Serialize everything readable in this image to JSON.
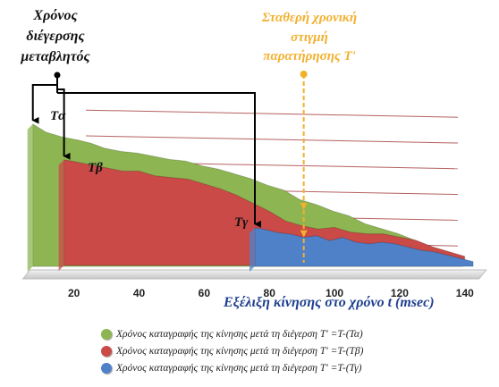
{
  "chart_data": {
    "type": "area",
    "ylabel_lines": [
      "Χρόνος",
      "διέγερσης",
      "μεταβλητός"
    ],
    "xlabel": "Εξέλιξη κίνησης στο χρόνο t (msec)",
    "x_ticks": [
      20,
      40,
      60,
      80,
      100,
      120,
      140
    ],
    "xlim": [
      5,
      145
    ],
    "ylim": [
      0,
      10
    ],
    "grid": true,
    "annotation_lines": [
      "Σταθερή χρονική",
      "στιγμή",
      "παρατήρησης Τ'"
    ],
    "annotation_x": 90,
    "series": [
      {
        "name": "Tα",
        "color": "#8db551",
        "x": [
          8,
          12,
          17,
          22,
          26,
          30,
          35,
          40,
          45,
          50,
          55,
          60,
          65,
          70,
          75,
          80,
          85,
          90,
          95,
          100,
          105,
          110,
          115,
          120,
          125,
          130,
          135,
          140
        ],
        "y": [
          9.0,
          8.5,
          8.2,
          8.0,
          7.8,
          7.5,
          7.3,
          7.2,
          7.0,
          6.8,
          6.7,
          6.4,
          6.2,
          5.9,
          5.6,
          5.2,
          4.9,
          4.3,
          4.0,
          3.6,
          3.3,
          2.8,
          2.5,
          2.2,
          1.8,
          1.4,
          0.9,
          0.6
        ]
      },
      {
        "name": "Tβ",
        "color": "#c94a47",
        "x": [
          17,
          20,
          25,
          30,
          35,
          40,
          45,
          50,
          55,
          60,
          65,
          70,
          75,
          80,
          85,
          90,
          95,
          100,
          105,
          110,
          115,
          120,
          125,
          130,
          135,
          140
        ],
        "y": [
          6.7,
          6.6,
          6.4,
          6.2,
          6.0,
          6.0,
          5.7,
          5.6,
          5.5,
          5.2,
          4.9,
          4.5,
          4.0,
          3.5,
          2.9,
          2.6,
          2.4,
          2.5,
          2.2,
          2.1,
          2.1,
          1.9,
          1.7,
          1.3,
          1.0,
          0.7
        ]
      },
      {
        "name": "Tγ",
        "color": "#4f81c9",
        "x": [
          75,
          78,
          82,
          86,
          90,
          94,
          98,
          102,
          106,
          110,
          114,
          118,
          122,
          126,
          130,
          134,
          138,
          142
        ],
        "y": [
          2.4,
          2.3,
          2.1,
          2.0,
          1.8,
          1.9,
          1.6,
          1.8,
          1.5,
          1.4,
          1.5,
          1.4,
          1.2,
          1.0,
          0.9,
          0.7,
          0.5,
          0.3
        ]
      }
    ],
    "legend": [
      {
        "label": "Χρόνος καταγραφής της κίνησης μετά τη διέγερση Τ' =Τ-(Τα)",
        "color": "#8db551"
      },
      {
        "label": "Χρόνος καταγραφής της κίνησης μετά τη διέγερση Τ' =Τ-(Τβ)",
        "color": "#c94a47"
      },
      {
        "label": "Χρόνος καταγραφής της κίνησης μετά τη διέγερση Τ' =Τ-(Τγ)",
        "color": "#4f81c9"
      }
    ],
    "legend_position": "bottom",
    "colors": {
      "grid": "#a33a3a",
      "annotation": "#f2b02d",
      "arrows": "#000000",
      "axis_text": "#222222",
      "xlabel": "#1f3f8f"
    }
  }
}
